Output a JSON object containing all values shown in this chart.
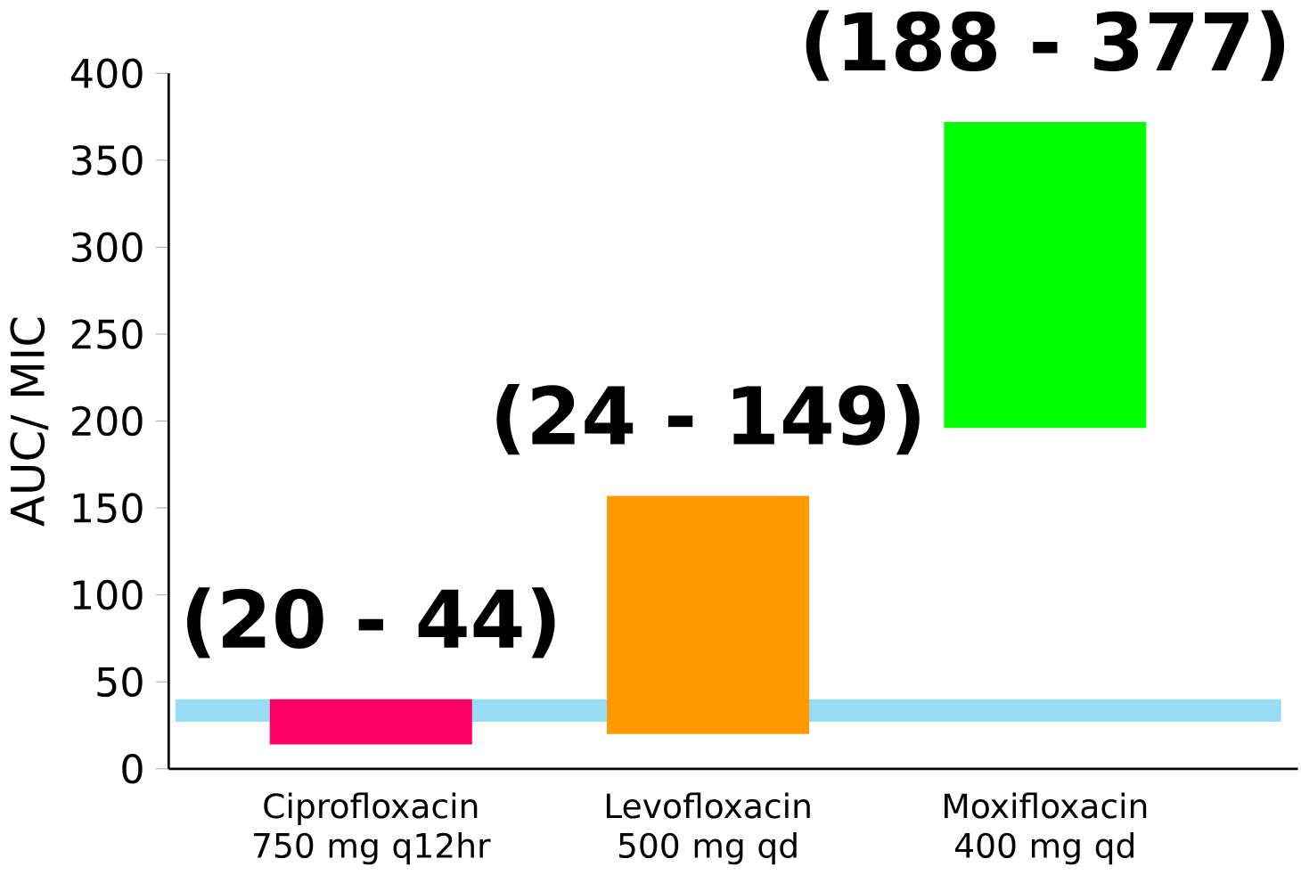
{
  "chart_data": {
    "type": "bar",
    "ylabel": "AUC/ MIC",
    "categories": [
      "Ciprofloxacin 750 mg q12hr",
      "Levofloxacin 500 mg qd",
      "Moxifloxacin 400 mg qd"
    ],
    "base": [
      14,
      20,
      196
    ],
    "values": [
      26,
      137,
      176
    ],
    "colors": [
      "#ff0066",
      "#ff9900",
      "#00ff00"
    ],
    "ylim": [
      0,
      400
    ],
    "yticks": [
      0,
      50,
      100,
      150,
      200,
      250,
      300,
      350,
      400
    ],
    "bands": [
      {
        "axis": "y",
        "from": 27,
        "to": 40,
        "color": "#99ddf5"
      }
    ],
    "annotations": [
      "(20 - 44)",
      "(24 - 149)",
      "(188 - 377)"
    ],
    "grid": false
  }
}
